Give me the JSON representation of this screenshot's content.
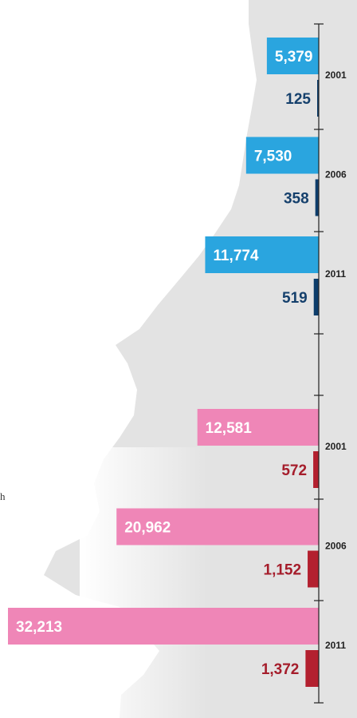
{
  "colors": {
    "top_primary": "#2aa5df",
    "top_secondary": "#0d3d6b",
    "bottom_primary": "#ef86b7",
    "bottom_secondary": "#b3202f",
    "label_on_bar": "#ffffff",
    "top_secondary_label": "#15406c",
    "bottom_secondary_label": "#a51d2b",
    "map_shape": "#e3e3e3",
    "axis": "#222222"
  },
  "fragment_text": "h",
  "chart_data": [
    {
      "type": "bar",
      "orientation": "horizontal",
      "categories": [
        "2001",
        "2006",
        "2011"
      ],
      "series": [
        {
          "values": [
            5379,
            7530,
            11774
          ],
          "labels": [
            "5,379",
            "7,530",
            "11,774"
          ]
        },
        {
          "values": [
            125,
            358,
            519
          ],
          "labels": [
            "125",
            "358",
            "519"
          ]
        }
      ]
    },
    {
      "type": "bar",
      "orientation": "horizontal",
      "categories": [
        "2001",
        "2006",
        "2011"
      ],
      "series": [
        {
          "values": [
            12581,
            20962,
            32213
          ],
          "labels": [
            "12,581",
            "20,962",
            "32,213"
          ]
        },
        {
          "values": [
            572,
            1152,
            1372
          ],
          "labels": [
            "572",
            "1,152",
            "1,372"
          ]
        }
      ]
    }
  ]
}
